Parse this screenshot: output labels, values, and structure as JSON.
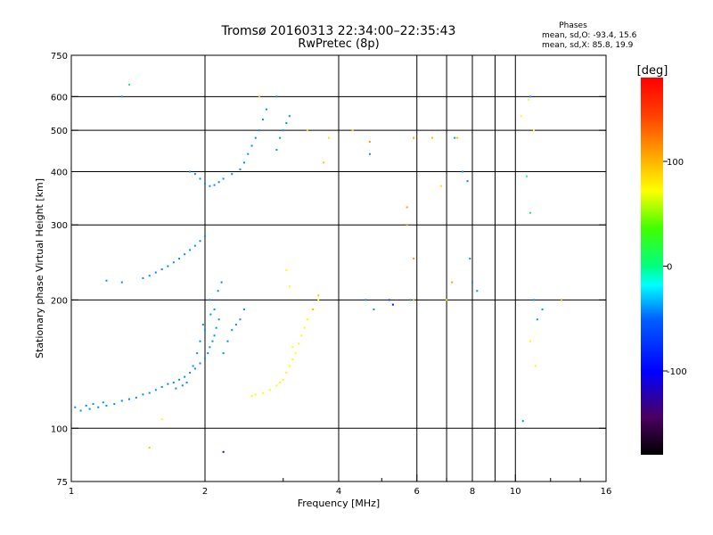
{
  "chart_data": {
    "type": "scatter",
    "title": "Tromsø 20160313 22:34:00–22:35:43",
    "subtitle": "RwPretec (8p)",
    "xlabel": "Frequency [MHz]",
    "ylabel": "Stationary phase Virtual Height [km]",
    "x_scale": "log",
    "y_scale": "log",
    "xlim": [
      1,
      16
    ],
    "ylim": [
      75,
      750
    ],
    "x_ticks": [
      1,
      2,
      4,
      6,
      8,
      10,
      16
    ],
    "x_tick_labels": [
      "1",
      "2",
      "4",
      "6",
      "8",
      "10",
      "16"
    ],
    "y_ticks": [
      75,
      100,
      200,
      300,
      400,
      500,
      600,
      750
    ],
    "y_tick_labels": [
      "75",
      "100",
      "200",
      "300",
      "400",
      "500",
      "600",
      "750"
    ],
    "grid": true,
    "phases_box": {
      "title": "Phases",
      "line1": "mean, sd,O: -93.4, 15.6",
      "line2": "mean, sd,X: 85.8, 19.9"
    },
    "colorbar": {
      "label": "[deg]",
      "range": [
        -180,
        180
      ],
      "ticks": [
        100,
        0,
        -100
      ],
      "tick_labels": [
        "100",
        "0",
        "-100"
      ]
    },
    "series": [
      {
        "points": [
          [
            1.02,
            112,
            -100
          ],
          [
            1.05,
            110,
            -100
          ],
          [
            1.08,
            113,
            -100
          ],
          [
            1.1,
            111,
            -100
          ],
          [
            1.12,
            114,
            -100
          ],
          [
            1.15,
            112,
            -100
          ],
          [
            1.18,
            115,
            -100
          ],
          [
            1.2,
            113,
            -100
          ],
          [
            1.25,
            114,
            -100
          ],
          [
            1.3,
            116,
            -100
          ],
          [
            1.35,
            117,
            -100
          ],
          [
            1.4,
            118,
            -100
          ],
          [
            1.45,
            120,
            -100
          ],
          [
            1.5,
            121,
            -100
          ],
          [
            1.55,
            123,
            -100
          ],
          [
            1.6,
            125,
            -100
          ],
          [
            1.65,
            127,
            -100
          ],
          [
            1.7,
            128,
            -100
          ],
          [
            1.75,
            130,
            -100
          ],
          [
            1.8,
            132,
            -100
          ],
          [
            1.85,
            135,
            -100
          ],
          [
            1.9,
            138,
            -100
          ],
          [
            1.95,
            142,
            -100
          ],
          [
            2.0,
            146,
            -100
          ],
          [
            2.03,
            150,
            -100
          ],
          [
            2.05,
            155,
            -100
          ],
          [
            2.08,
            160,
            -100
          ],
          [
            2.1,
            165,
            -100
          ],
          [
            2.12,
            172,
            -100
          ],
          [
            2.15,
            180,
            -100
          ],
          [
            2.1,
            190,
            -100
          ],
          [
            2.05,
            200,
            -100
          ],
          [
            2.0,
            170,
            -100
          ],
          [
            1.95,
            160,
            -100
          ],
          [
            1.92,
            150,
            -100
          ],
          [
            1.98,
            175,
            -100
          ],
          [
            2.06,
            185,
            -100
          ],
          [
            2.14,
            210,
            -100
          ],
          [
            2.18,
            220,
            -100
          ],
          [
            1.88,
            140,
            -100
          ],
          [
            1.82,
            128,
            -100
          ],
          [
            1.78,
            126,
            -100
          ],
          [
            1.72,
            124,
            -100
          ],
          [
            2.2,
            150,
            -100
          ],
          [
            2.25,
            160,
            -100
          ],
          [
            2.3,
            170,
            -100
          ],
          [
            2.35,
            175,
            -100
          ],
          [
            2.4,
            180,
            -100
          ],
          [
            2.45,
            190,
            -100
          ]
        ]
      },
      {
        "points": [
          [
            1.45,
            225,
            -100
          ],
          [
            1.5,
            228,
            -100
          ],
          [
            1.55,
            232,
            -100
          ],
          [
            1.6,
            236,
            -100
          ],
          [
            1.65,
            240,
            -100
          ],
          [
            1.7,
            245,
            -100
          ],
          [
            1.75,
            250,
            -100
          ],
          [
            1.8,
            256,
            -100
          ],
          [
            1.85,
            262,
            -100
          ],
          [
            1.9,
            268,
            -100
          ],
          [
            1.95,
            275,
            -100
          ],
          [
            2.0,
            282,
            -100
          ],
          [
            1.3,
            220,
            -100
          ],
          [
            1.2,
            222,
            -100
          ]
        ]
      },
      {
        "points": [
          [
            1.85,
            400,
            -100
          ],
          [
            1.9,
            395,
            -100
          ],
          [
            1.95,
            385,
            -100
          ],
          [
            2.0,
            375,
            -100
          ],
          [
            2.05,
            370,
            -100
          ],
          [
            2.1,
            372,
            -100
          ],
          [
            2.15,
            378,
            -100
          ],
          [
            2.2,
            385,
            -100
          ],
          [
            2.3,
            395,
            -100
          ],
          [
            2.4,
            405,
            -100
          ],
          [
            2.45,
            420,
            -100
          ],
          [
            2.5,
            440,
            -100
          ],
          [
            2.55,
            460,
            -100
          ],
          [
            2.6,
            480,
            -100
          ],
          [
            2.65,
            500,
            -100
          ],
          [
            2.7,
            530,
            -100
          ],
          [
            2.75,
            560,
            -100
          ],
          [
            2.9,
            450,
            -100
          ],
          [
            2.95,
            480,
            -100
          ],
          [
            3.0,
            500,
            -100
          ],
          [
            3.05,
            520,
            -100
          ],
          [
            3.1,
            540,
            -100
          ]
        ]
      },
      {
        "points": [
          [
            2.6,
            120,
            100
          ],
          [
            2.7,
            121,
            100
          ],
          [
            2.8,
            123,
            100
          ],
          [
            2.9,
            126,
            100
          ],
          [
            3.0,
            130,
            100
          ],
          [
            3.05,
            135,
            100
          ],
          [
            3.1,
            140,
            100
          ],
          [
            3.15,
            145,
            100
          ],
          [
            3.2,
            150,
            100
          ],
          [
            3.25,
            158,
            100
          ],
          [
            3.3,
            165,
            100
          ],
          [
            3.35,
            172,
            100
          ],
          [
            3.4,
            180,
            100
          ],
          [
            3.5,
            190,
            100
          ],
          [
            3.6,
            200,
            100
          ],
          [
            3.1,
            215,
            100
          ],
          [
            3.05,
            235,
            100
          ],
          [
            2.55,
            119,
            100
          ],
          [
            2.95,
            128,
            100
          ],
          [
            3.15,
            155,
            100
          ]
        ]
      },
      {
        "points": [
          [
            3.5,
            190,
            120
          ],
          [
            3.6,
            205,
            120
          ],
          [
            3.7,
            420,
            120
          ],
          [
            3.8,
            480,
            110
          ],
          [
            3.4,
            500,
            110
          ],
          [
            4.3,
            500,
            110
          ],
          [
            4.7,
            470,
            130
          ],
          [
            5.7,
            330,
            130
          ],
          [
            5.7,
            300,
            130
          ],
          [
            5.9,
            200,
            130
          ],
          [
            5.9,
            480,
            130
          ],
          [
            5.9,
            250,
            130
          ],
          [
            7.0,
            200,
            110
          ],
          [
            7.2,
            220,
            130
          ],
          [
            6.8,
            370,
            110
          ],
          [
            10.6,
            390,
            -20
          ],
          [
            10.8,
            320,
            -20
          ],
          [
            11.0,
            200,
            -100
          ],
          [
            11.2,
            180,
            -100
          ]
        ]
      },
      {
        "points": [
          [
            4.7,
            440,
            -100
          ],
          [
            4.6,
            200,
            -100
          ],
          [
            4.8,
            190,
            -100
          ],
          [
            5.2,
            200,
            -120
          ],
          [
            5.3,
            195,
            -140
          ],
          [
            5.8,
            200,
            -100
          ],
          [
            7.3,
            480,
            -100
          ],
          [
            7.6,
            400,
            -100
          ],
          [
            7.8,
            380,
            -100
          ],
          [
            7.9,
            250,
            -100
          ],
          [
            8.0,
            220,
            -100
          ],
          [
            8.2,
            210,
            -100
          ],
          [
            10.8,
            600,
            -100
          ],
          [
            11.5,
            190,
            -100
          ],
          [
            10.4,
            104,
            -100
          ]
        ]
      },
      {
        "points": [
          [
            1.35,
            640,
            -20
          ],
          [
            1.3,
            600,
            -100
          ],
          [
            1.5,
            90,
            120
          ],
          [
            1.6,
            105,
            100
          ],
          [
            2.2,
            88,
            -150
          ],
          [
            2.65,
            600,
            120
          ],
          [
            2.9,
            600,
            -100
          ],
          [
            6.5,
            480,
            120
          ],
          [
            7.4,
            480,
            120
          ],
          [
            10.3,
            540,
            100
          ],
          [
            10.7,
            590,
            100
          ],
          [
            11.0,
            500,
            100
          ],
          [
            11.1,
            140,
            100
          ],
          [
            10.8,
            160,
            100
          ],
          [
            12.7,
            200,
            130
          ]
        ]
      }
    ]
  }
}
